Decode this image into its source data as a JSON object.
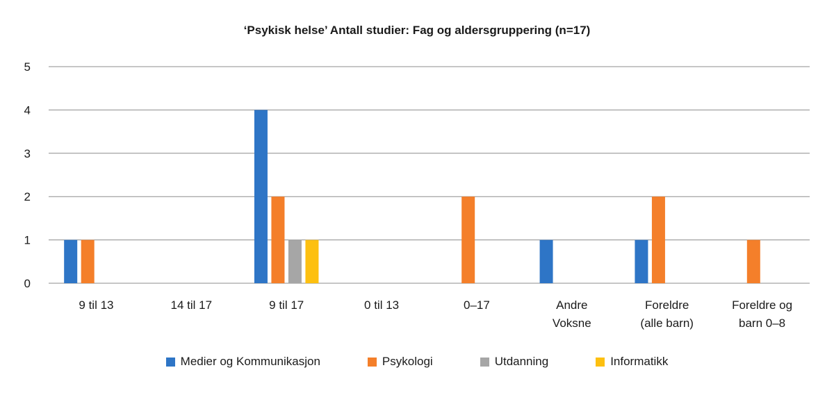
{
  "chart_data": {
    "type": "bar",
    "title": "‘Psykisk helse’ Antall studier: Fag og aldersgruppering (n=17)",
    "xlabel": "",
    "ylabel": "",
    "ylim": [
      0,
      5
    ],
    "yticks": [
      "0",
      "1",
      "2",
      "3",
      "4",
      "5"
    ],
    "grid": true,
    "legend_position": "bottom",
    "categories": [
      [
        "9 til 13"
      ],
      [
        "14 til 17"
      ],
      [
        "9 til 17"
      ],
      [
        "0 til 13"
      ],
      [
        "0–17"
      ],
      [
        "Andre",
        "Voksne"
      ],
      [
        "Foreldre",
        "(alle barn)"
      ],
      [
        "Foreldre og",
        "barn 0–8"
      ]
    ],
    "series": [
      {
        "name": "Medier og Kommunikasjon",
        "color": "#2e75c6",
        "values": [
          1,
          0,
          4,
          0,
          0,
          1,
          1,
          0
        ]
      },
      {
        "name": "Psykologi",
        "color": "#f47f2a",
        "values": [
          1,
          0,
          2,
          0,
          2,
          0,
          2,
          1
        ]
      },
      {
        "name": "Utdanning",
        "color": "#a6a6a6",
        "values": [
          0,
          0,
          1,
          0,
          0,
          0,
          0,
          0
        ]
      },
      {
        "name": "Informatikk",
        "color": "#fdc010",
        "values": [
          0,
          0,
          1,
          0,
          0,
          0,
          0,
          0
        ]
      }
    ]
  }
}
